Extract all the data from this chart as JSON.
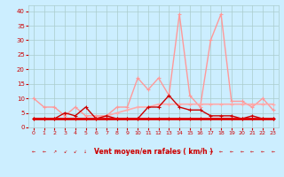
{
  "x": [
    0,
    1,
    2,
    3,
    4,
    5,
    6,
    7,
    8,
    9,
    10,
    11,
    12,
    13,
    14,
    15,
    16,
    17,
    18,
    19,
    20,
    21,
    22,
    23
  ],
  "series": [
    {
      "name": "rafales_light",
      "color": "#ff9999",
      "linewidth": 1.0,
      "marker": "+",
      "markersize": 3,
      "y": [
        10,
        7,
        7,
        4,
        7,
        4,
        4,
        4,
        7,
        7,
        17,
        13,
        17,
        11,
        39,
        11,
        7,
        30,
        39,
        9,
        9,
        7,
        10,
        6
      ]
    },
    {
      "name": "moyen_light",
      "color": "#ffaaaa",
      "linewidth": 1.2,
      "marker": "+",
      "markersize": 3,
      "y": [
        3,
        3,
        3,
        3,
        3,
        3,
        3,
        4,
        5,
        6,
        7,
        7,
        8,
        8,
        8,
        8,
        8,
        8,
        8,
        8,
        8,
        8,
        8,
        8
      ]
    },
    {
      "name": "rafales_dark",
      "color": "#cc0000",
      "linewidth": 1.0,
      "marker": "+",
      "markersize": 3,
      "y": [
        3,
        3,
        3,
        5,
        4,
        7,
        3,
        4,
        3,
        3,
        3,
        7,
        7,
        11,
        7,
        6,
        6,
        4,
        4,
        4,
        3,
        4,
        3,
        3
      ]
    },
    {
      "name": "moyen_dark",
      "color": "#dd0000",
      "linewidth": 2.0,
      "marker": "+",
      "markersize": 3,
      "y": [
        3,
        3,
        3,
        3,
        3,
        3,
        3,
        3,
        3,
        3,
        3,
        3,
        3,
        3,
        3,
        3,
        3,
        3,
        3,
        3,
        3,
        3,
        3,
        3
      ]
    }
  ],
  "xlabel": "Vent moyen/en rafales ( km/h )",
  "xlim": [
    -0.5,
    23.5
  ],
  "ylim": [
    0,
    42
  ],
  "yticks": [
    0,
    5,
    10,
    15,
    20,
    25,
    30,
    35,
    40
  ],
  "xticks": [
    0,
    1,
    2,
    3,
    4,
    5,
    6,
    7,
    8,
    9,
    10,
    11,
    12,
    13,
    14,
    15,
    16,
    17,
    18,
    19,
    20,
    21,
    22,
    23
  ],
  "bg_color": "#cceeff",
  "grid_color": "#aacccc",
  "tick_color": "#cc0000",
  "xlabel_color": "#cc0000",
  "arrow_symbols": [
    "←",
    "←",
    "↗",
    "↙",
    "↙",
    "↓",
    "↗",
    "→",
    "→",
    "↓",
    "↙",
    "↗",
    "↑",
    "←",
    "↙",
    "↙",
    "↗",
    "→",
    "←",
    "←",
    "←",
    "←",
    "←",
    "←"
  ]
}
